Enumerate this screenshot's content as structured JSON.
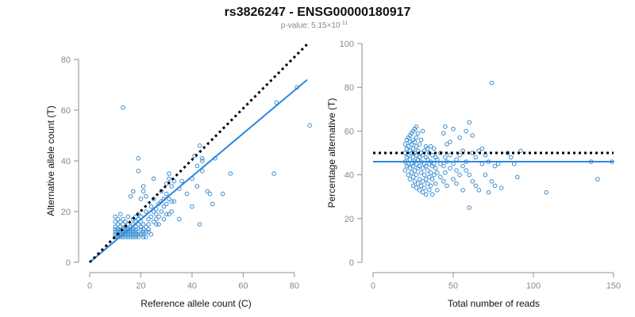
{
  "title": "rs3826247 - ENSG00000180917",
  "subtitle_prefix": "p-value: 5.15×10",
  "subtitle_exponent": "-11",
  "colors": {
    "points": "#3a8fd4",
    "fit": "#2e86de",
    "reference": "#000000"
  },
  "chart_data": [
    {
      "type": "scatter",
      "xlabel": "Reference allele count (C)",
      "ylabel": "Alternative allele count (T)",
      "xlim": [
        0,
        85
      ],
      "ylim": [
        0,
        80
      ],
      "xticks": [
        0,
        20,
        40,
        60,
        80
      ],
      "yticks": [
        0,
        20,
        40,
        60,
        80
      ],
      "fit_line": {
        "x": [
          0,
          85
        ],
        "y": [
          0,
          72
        ]
      },
      "reference_line": {
        "x": [
          0,
          85
        ],
        "y": [
          0,
          86
        ]
      },
      "points": [
        [
          10,
          10
        ],
        [
          10,
          11
        ],
        [
          10,
          12
        ],
        [
          10,
          13
        ],
        [
          10,
          14
        ],
        [
          10,
          16
        ],
        [
          10,
          18
        ],
        [
          11,
          10
        ],
        [
          11,
          12
        ],
        [
          11,
          13
        ],
        [
          11,
          15
        ],
        [
          11,
          17
        ],
        [
          11,
          11
        ],
        [
          12,
          10
        ],
        [
          12,
          11
        ],
        [
          12,
          12
        ],
        [
          12,
          14
        ],
        [
          12,
          16
        ],
        [
          12,
          19
        ],
        [
          12,
          13
        ],
        [
          13,
          10
        ],
        [
          13,
          12
        ],
        [
          13,
          13
        ],
        [
          13,
          15
        ],
        [
          13,
          17
        ],
        [
          13,
          61
        ],
        [
          13,
          11
        ],
        [
          14,
          10
        ],
        [
          14,
          11
        ],
        [
          14,
          12
        ],
        [
          14,
          14
        ],
        [
          14,
          16
        ],
        [
          14,
          13
        ],
        [
          15,
          10
        ],
        [
          15,
          12
        ],
        [
          15,
          13
        ],
        [
          15,
          15
        ],
        [
          15,
          18
        ],
        [
          15,
          11
        ],
        [
          16,
          10
        ],
        [
          16,
          11
        ],
        [
          16,
          12
        ],
        [
          16,
          14
        ],
        [
          16,
          26
        ],
        [
          16,
          13
        ],
        [
          17,
          10
        ],
        [
          17,
          12
        ],
        [
          17,
          13
        ],
        [
          17,
          15
        ],
        [
          17,
          17
        ],
        [
          17,
          28
        ],
        [
          17,
          11
        ],
        [
          18,
          10
        ],
        [
          18,
          11
        ],
        [
          18,
          12
        ],
        [
          18,
          14
        ],
        [
          18,
          16
        ],
        [
          18,
          18
        ],
        [
          18,
          13
        ],
        [
          19,
          10
        ],
        [
          19,
          12
        ],
        [
          19,
          15
        ],
        [
          19,
          17
        ],
        [
          19,
          19
        ],
        [
          19,
          41
        ],
        [
          19,
          36
        ],
        [
          19,
          11
        ],
        [
          20,
          11
        ],
        [
          20,
          13
        ],
        [
          20,
          14
        ],
        [
          20,
          16
        ],
        [
          20,
          18
        ],
        [
          20,
          25
        ],
        [
          21,
          10
        ],
        [
          21,
          12
        ],
        [
          21,
          13
        ],
        [
          21,
          15
        ],
        [
          21,
          28
        ],
        [
          21,
          30
        ],
        [
          21,
          11
        ],
        [
          22,
          10
        ],
        [
          22,
          12
        ],
        [
          22,
          14
        ],
        [
          22,
          20
        ],
        [
          22,
          26
        ],
        [
          23,
          13
        ],
        [
          23,
          15
        ],
        [
          23,
          17
        ],
        [
          23,
          12
        ],
        [
          24,
          18
        ],
        [
          24,
          22
        ],
        [
          24,
          11
        ],
        [
          25,
          16
        ],
        [
          25,
          20
        ],
        [
          25,
          25
        ],
        [
          25,
          33
        ],
        [
          26,
          17
        ],
        [
          26,
          19
        ],
        [
          26,
          21
        ],
        [
          26,
          15
        ],
        [
          27,
          18
        ],
        [
          27,
          23
        ],
        [
          27,
          15
        ],
        [
          28,
          20
        ],
        [
          28,
          24
        ],
        [
          28,
          28
        ],
        [
          29,
          22
        ],
        [
          29,
          25
        ],
        [
          29,
          17
        ],
        [
          30,
          19
        ],
        [
          30,
          23
        ],
        [
          30,
          27
        ],
        [
          30,
          31
        ],
        [
          31,
          19
        ],
        [
          31,
          25
        ],
        [
          31,
          33
        ],
        [
          31,
          35
        ],
        [
          32,
          20
        ],
        [
          32,
          24
        ],
        [
          32,
          30
        ],
        [
          33,
          24
        ],
        [
          33,
          32
        ],
        [
          35,
          17
        ],
        [
          35,
          29
        ],
        [
          36,
          32
        ],
        [
          38,
          27
        ],
        [
          40,
          22
        ],
        [
          40,
          33
        ],
        [
          41,
          42
        ],
        [
          42,
          30
        ],
        [
          42,
          38
        ],
        [
          43,
          15
        ],
        [
          43,
          46
        ],
        [
          44,
          40
        ],
        [
          44,
          41
        ],
        [
          44,
          36
        ],
        [
          46,
          28
        ],
        [
          47,
          27
        ],
        [
          48,
          23
        ],
        [
          49,
          41
        ],
        [
          52,
          27
        ],
        [
          55,
          35
        ],
        [
          72,
          35
        ],
        [
          73,
          63
        ],
        [
          81,
          69
        ],
        [
          86,
          54
        ]
      ]
    },
    {
      "type": "scatter",
      "xlabel": "Total number of reads",
      "ylabel": "Percentage alternative (T)",
      "xlim": [
        0,
        150
      ],
      "ylim": [
        0,
        100
      ],
      "xticks": [
        0,
        50,
        100,
        150
      ],
      "yticks": [
        0,
        20,
        40,
        60,
        80,
        100
      ],
      "fit_line": {
        "x": [
          0,
          150
        ],
        "y": [
          46,
          46
        ]
      },
      "reference_line": {
        "x": [
          0,
          150
        ],
        "y": [
          50,
          50
        ]
      },
      "points": [
        [
          20,
          42
        ],
        [
          20,
          46
        ],
        [
          20,
          50
        ],
        [
          20,
          54
        ],
        [
          21,
          44
        ],
        [
          21,
          48
        ],
        [
          21,
          52
        ],
        [
          21,
          56
        ],
        [
          22,
          40
        ],
        [
          22,
          45
        ],
        [
          22,
          49
        ],
        [
          22,
          53
        ],
        [
          22,
          57
        ],
        [
          23,
          38
        ],
        [
          23,
          43
        ],
        [
          23,
          47
        ],
        [
          23,
          51
        ],
        [
          23,
          55
        ],
        [
          23,
          58
        ],
        [
          24,
          41
        ],
        [
          24,
          45
        ],
        [
          24,
          50
        ],
        [
          24,
          54
        ],
        [
          24,
          59
        ],
        [
          25,
          35
        ],
        [
          25,
          39
        ],
        [
          25,
          44
        ],
        [
          25,
          48
        ],
        [
          25,
          52
        ],
        [
          25,
          56
        ],
        [
          25,
          60
        ],
        [
          26,
          37
        ],
        [
          26,
          42
        ],
        [
          26,
          46
        ],
        [
          26,
          50
        ],
        [
          26,
          55
        ],
        [
          26,
          61
        ],
        [
          27,
          34
        ],
        [
          27,
          40
        ],
        [
          27,
          45
        ],
        [
          27,
          49
        ],
        [
          27,
          53
        ],
        [
          27,
          57
        ],
        [
          27,
          62
        ],
        [
          28,
          36
        ],
        [
          28,
          43
        ],
        [
          28,
          47
        ],
        [
          28,
          51
        ],
        [
          28,
          59
        ],
        [
          29,
          33
        ],
        [
          29,
          38
        ],
        [
          29,
          44
        ],
        [
          29,
          48
        ],
        [
          29,
          54
        ],
        [
          30,
          35
        ],
        [
          30,
          41
        ],
        [
          30,
          46
        ],
        [
          30,
          50
        ],
        [
          30,
          56
        ],
        [
          31,
          32
        ],
        [
          31,
          37
        ],
        [
          31,
          43
        ],
        [
          31,
          49
        ],
        [
          31,
          60
        ],
        [
          32,
          34
        ],
        [
          32,
          40
        ],
        [
          32,
          45
        ],
        [
          32,
          51
        ],
        [
          33,
          31
        ],
        [
          33,
          38
        ],
        [
          33,
          44
        ],
        [
          33,
          48
        ],
        [
          33,
          53
        ],
        [
          34,
          36
        ],
        [
          34,
          42
        ],
        [
          34,
          47
        ],
        [
          34,
          52
        ],
        [
          35,
          33
        ],
        [
          35,
          39
        ],
        [
          35,
          45
        ],
        [
          35,
          50
        ],
        [
          36,
          35
        ],
        [
          36,
          41
        ],
        [
          36,
          46
        ],
        [
          36,
          53
        ],
        [
          37,
          31
        ],
        [
          37,
          38
        ],
        [
          37,
          44
        ],
        [
          37,
          49
        ],
        [
          38,
          40
        ],
        [
          38,
          45
        ],
        [
          38,
          52
        ],
        [
          39,
          36
        ],
        [
          39,
          43
        ],
        [
          39,
          48
        ],
        [
          40,
          33
        ],
        [
          40,
          41
        ],
        [
          40,
          47
        ],
        [
          42,
          39
        ],
        [
          42,
          45
        ],
        [
          42,
          50
        ],
        [
          44,
          37
        ],
        [
          44,
          44
        ],
        [
          44,
          59
        ],
        [
          45,
          41
        ],
        [
          45,
          48
        ],
        [
          45,
          62
        ],
        [
          46,
          35
        ],
        [
          46,
          46
        ],
        [
          46,
          54
        ],
        [
          48,
          43
        ],
        [
          48,
          49
        ],
        [
          48,
          55
        ],
        [
          50,
          38
        ],
        [
          50,
          45
        ],
        [
          50,
          61
        ],
        [
          52,
          36
        ],
        [
          52,
          42
        ],
        [
          52,
          47
        ],
        [
          54,
          40
        ],
        [
          54,
          49
        ],
        [
          54,
          57
        ],
        [
          56,
          33
        ],
        [
          56,
          44
        ],
        [
          56,
          51
        ],
        [
          58,
          42
        ],
        [
          58,
          46
        ],
        [
          58,
          60
        ],
        [
          60,
          25
        ],
        [
          60,
          40
        ],
        [
          60,
          64
        ],
        [
          62,
          37
        ],
        [
          62,
          50
        ],
        [
          62,
          58
        ],
        [
          64,
          35
        ],
        [
          64,
          48
        ],
        [
          66,
          33
        ],
        [
          66,
          51
        ],
        [
          68,
          45
        ],
        [
          68,
          52
        ],
        [
          70,
          40
        ],
        [
          70,
          49
        ],
        [
          72,
          32
        ],
        [
          72,
          46
        ],
        [
          74,
          37
        ],
        [
          74,
          82
        ],
        [
          76,
          35
        ],
        [
          76,
          44
        ],
        [
          78,
          45
        ],
        [
          80,
          34
        ],
        [
          84,
          50
        ],
        [
          86,
          48
        ],
        [
          88,
          45
        ],
        [
          90,
          39
        ],
        [
          92,
          51
        ],
        [
          108,
          32
        ],
        [
          136,
          46
        ],
        [
          140,
          38
        ],
        [
          149,
          46
        ]
      ]
    }
  ]
}
